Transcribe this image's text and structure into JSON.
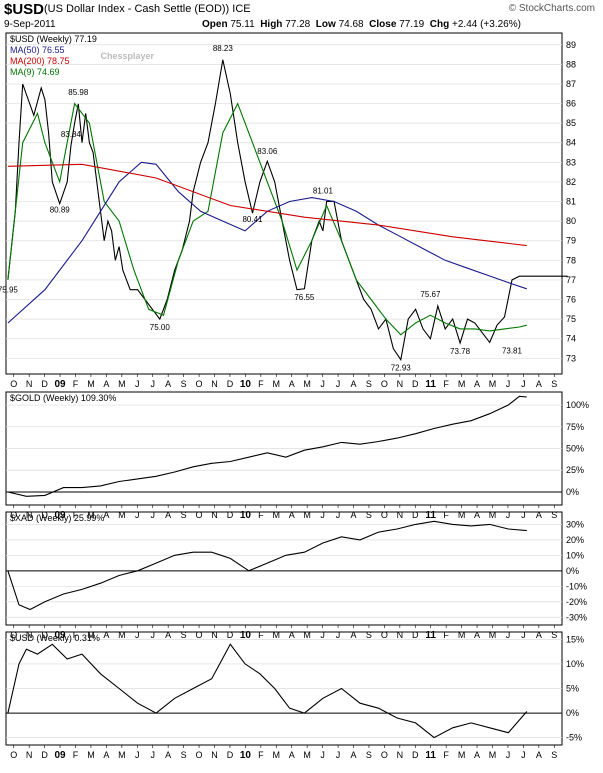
{
  "header": {
    "symbol": "$USD",
    "name": "(US Dollar Index - Cash Settle (EOD)) ICE",
    "date": "9-Sep-2011",
    "open_label": "Open",
    "open": "75.11",
    "high_label": "High",
    "high": "77.28",
    "low_label": "Low",
    "low": "74.68",
    "close_label": "Close",
    "close": "77.19",
    "chg_label": "Chg",
    "chg": "+2.44 (+3.26%)",
    "brand": "© StockCharts.com",
    "watermark": "Chessplayer"
  },
  "chart_data": [
    {
      "type": "line",
      "panel": "price",
      "legend": [
        {
          "text": "$USD (Weekly) 77.19",
          "color": "#000000"
        },
        {
          "text": "MA(50) 76.55",
          "color": "#1a1a8c"
        },
        {
          "text": "MA(200) 78.75",
          "color": "#cc0000"
        },
        {
          "text": "MA(9) 74.69",
          "color": "#007700"
        }
      ],
      "ylim": [
        72.2,
        89.6
      ],
      "yticks": [
        73,
        74,
        75,
        76,
        77,
        78,
        79,
        80,
        81,
        82,
        83,
        84,
        85,
        86,
        87,
        88,
        89
      ],
      "series": [
        {
          "name": "$USD",
          "color": "#000000",
          "x": [
            0,
            2,
            3,
            4,
            7,
            9,
            10,
            11,
            12,
            14,
            16,
            17,
            18,
            19,
            20,
            21,
            22,
            23,
            24,
            25,
            26,
            27,
            28,
            29,
            30,
            31,
            33,
            35,
            37,
            39,
            41,
            43,
            45,
            47,
            49,
            50,
            52,
            54,
            56,
            58,
            60,
            62,
            64,
            66,
            68,
            70,
            72,
            74,
            76,
            78,
            80,
            82,
            84,
            85,
            86,
            88,
            90,
            92,
            94,
            96,
            98,
            100,
            102,
            104,
            106,
            108,
            110,
            112,
            114,
            116,
            118,
            120,
            122,
            124,
            126,
            128,
            130,
            132,
            134,
            136,
            138,
            140,
            142,
            144,
            146,
            148,
            150,
            151
          ],
          "values": [
            77,
            80.5,
            84,
            87,
            85.4,
            86.8,
            86.2,
            84.5,
            82,
            80.89,
            82,
            83.84,
            85,
            85.98,
            84,
            85.5,
            84,
            83.5,
            82,
            80.5,
            79,
            80,
            79.5,
            78,
            78.7,
            77.5,
            76.5,
            76.5,
            76,
            75.5,
            75,
            76,
            77.5,
            78.5,
            80,
            81.5,
            83,
            84,
            86,
            88.23,
            86.5,
            84,
            82,
            80.41,
            82,
            83.06,
            82,
            80,
            78,
            76.5,
            76.55,
            79,
            80,
            79.5,
            81,
            81.01,
            79,
            78,
            77,
            76,
            75.5,
            74.5,
            75,
            73.5,
            72.93,
            75,
            75.5,
            74.5,
            74,
            75.67,
            74.5,
            75,
            73.78,
            75,
            74.8,
            74.3,
            73.81,
            74.7,
            75.11,
            77,
            77.19,
            77.19,
            77.19,
            77.19,
            77.19,
            77.19,
            77.19,
            77.19
          ]
        },
        {
          "name": "MA(9)",
          "color": "#007700",
          "x": [
            0,
            4,
            8,
            10,
            14,
            18,
            22,
            26,
            30,
            34,
            38,
            42,
            46,
            50,
            54,
            58,
            62,
            66,
            70,
            74,
            78,
            82,
            86,
            90,
            94,
            98,
            102,
            106,
            110,
            114,
            118,
            122,
            126,
            130,
            134,
            138,
            140
          ],
          "values": [
            77,
            84,
            85.5,
            84,
            82,
            86,
            85,
            81,
            80,
            77.5,
            75.5,
            75.2,
            78,
            80,
            80.5,
            84.5,
            86,
            84,
            82,
            80,
            77.5,
            79,
            80.8,
            79,
            77,
            76,
            75,
            74.2,
            74.8,
            75.2,
            74.8,
            74.5,
            74.5,
            74.4,
            74.5,
            74.6,
            74.69
          ]
        },
        {
          "name": "MA(50)",
          "color": "#1a1a8c",
          "x": [
            0,
            10,
            20,
            30,
            36,
            40,
            46,
            52,
            58,
            64,
            70,
            76,
            82,
            88,
            94,
            100,
            106,
            112,
            118,
            124,
            130,
            136,
            140
          ],
          "values": [
            74.8,
            76.5,
            79,
            82,
            83,
            82.9,
            81.5,
            80.5,
            80,
            79.5,
            80.5,
            81,
            81.2,
            81,
            80.5,
            79.8,
            79.2,
            78.6,
            78,
            77.6,
            77.2,
            76.8,
            76.55
          ]
        },
        {
          "name": "MA(200)",
          "color": "#cc0000",
          "x": [
            0,
            20,
            40,
            60,
            80,
            100,
            120,
            140
          ],
          "values": [
            82.8,
            82.9,
            82.2,
            80.8,
            80.2,
            79.8,
            79.2,
            78.75
          ]
        }
      ],
      "annotations": [
        "75.95",
        "80.89",
        "83.84",
        "85.98",
        "75.00",
        "88.23",
        "83.06",
        "80.41",
        "76.55",
        "81.01",
        "72.93",
        "75.67",
        "73.78",
        "73.81"
      ]
    },
    {
      "type": "line",
      "panel": "gold",
      "legend": [
        {
          "text": "$GOLD (Weekly) 109.30%",
          "color": "#000000"
        }
      ],
      "ylim": [
        -15,
        115
      ],
      "yticks": [
        0,
        25,
        50,
        75,
        100
      ],
      "ytick_labels": [
        "0%",
        "25%",
        "50%",
        "75%",
        "100%"
      ],
      "series": [
        {
          "name": "$GOLD",
          "x": [
            0,
            5,
            10,
            15,
            20,
            25,
            30,
            35,
            40,
            45,
            50,
            55,
            60,
            65,
            70,
            75,
            80,
            85,
            90,
            95,
            100,
            105,
            110,
            115,
            120,
            125,
            130,
            135,
            138,
            140
          ],
          "values": [
            0,
            -5,
            -4,
            5,
            5,
            7,
            12,
            15,
            18,
            23,
            29,
            33,
            35,
            40,
            45,
            40,
            48,
            52,
            57,
            55,
            58,
            62,
            67,
            73,
            78,
            82,
            90,
            100,
            110,
            109.3
          ]
        }
      ]
    },
    {
      "type": "line",
      "panel": "xad",
      "legend": [
        {
          "text": "$XAD (Weekly) 25.99%",
          "color": "#000000"
        }
      ],
      "ylim": [
        -35,
        38
      ],
      "yticks": [
        -30,
        -20,
        -10,
        0,
        10,
        20,
        30
      ],
      "ytick_labels": [
        "-30%",
        "-20%",
        "-10%",
        "0%",
        "10%",
        "20%",
        "30%"
      ],
      "series": [
        {
          "name": "$XAD",
          "x": [
            0,
            3,
            6,
            10,
            15,
            20,
            25,
            30,
            35,
            40,
            45,
            50,
            55,
            60,
            65,
            70,
            75,
            80,
            85,
            90,
            95,
            100,
            105,
            110,
            115,
            120,
            125,
            130,
            135,
            140
          ],
          "values": [
            0,
            -22,
            -25,
            -20,
            -15,
            -12,
            -8,
            -3,
            0,
            5,
            10,
            12,
            12,
            8,
            0,
            5,
            10,
            12,
            18,
            22,
            20,
            25,
            27,
            30,
            32,
            30,
            29,
            30,
            27,
            26
          ]
        }
      ]
    },
    {
      "type": "line",
      "panel": "usd-pct",
      "legend": [
        {
          "text": "$USD (Weekly) 0.31%",
          "color": "#000000"
        }
      ],
      "ylim": [
        -6.5,
        16.5
      ],
      "yticks": [
        -5,
        0,
        5,
        10,
        15
      ],
      "ytick_labels": [
        "-5%",
        "0%",
        "5%",
        "10%",
        "15%"
      ],
      "series": [
        {
          "name": "$USD %",
          "x": [
            0,
            3,
            5,
            8,
            12,
            16,
            20,
            25,
            30,
            35,
            40,
            45,
            50,
            55,
            60,
            64,
            68,
            72,
            76,
            80,
            85,
            90,
            95,
            100,
            105,
            110,
            115,
            120,
            125,
            130,
            135,
            140
          ],
          "values": [
            0,
            10,
            13,
            12,
            14,
            11,
            12,
            8,
            5,
            2,
            0,
            3,
            5,
            7,
            14,
            10,
            8,
            5,
            1,
            0,
            3,
            5,
            2,
            1,
            -1,
            -2,
            -5,
            -3,
            -2,
            -3,
            -4,
            0.31
          ]
        }
      ]
    }
  ],
  "x_axis": {
    "count": 150,
    "labels": [
      "O",
      "N",
      "D",
      "09",
      "F",
      "M",
      "A",
      "M",
      "J",
      "J",
      "A",
      "S",
      "O",
      "N",
      "D",
      "10",
      "F",
      "M",
      "A",
      "M",
      "J",
      "J",
      "A",
      "S",
      "O",
      "N",
      "D",
      "11",
      "F",
      "M",
      "A",
      "M",
      "J",
      "J",
      "A",
      "S"
    ],
    "years": [
      "09",
      "10",
      "11"
    ]
  }
}
